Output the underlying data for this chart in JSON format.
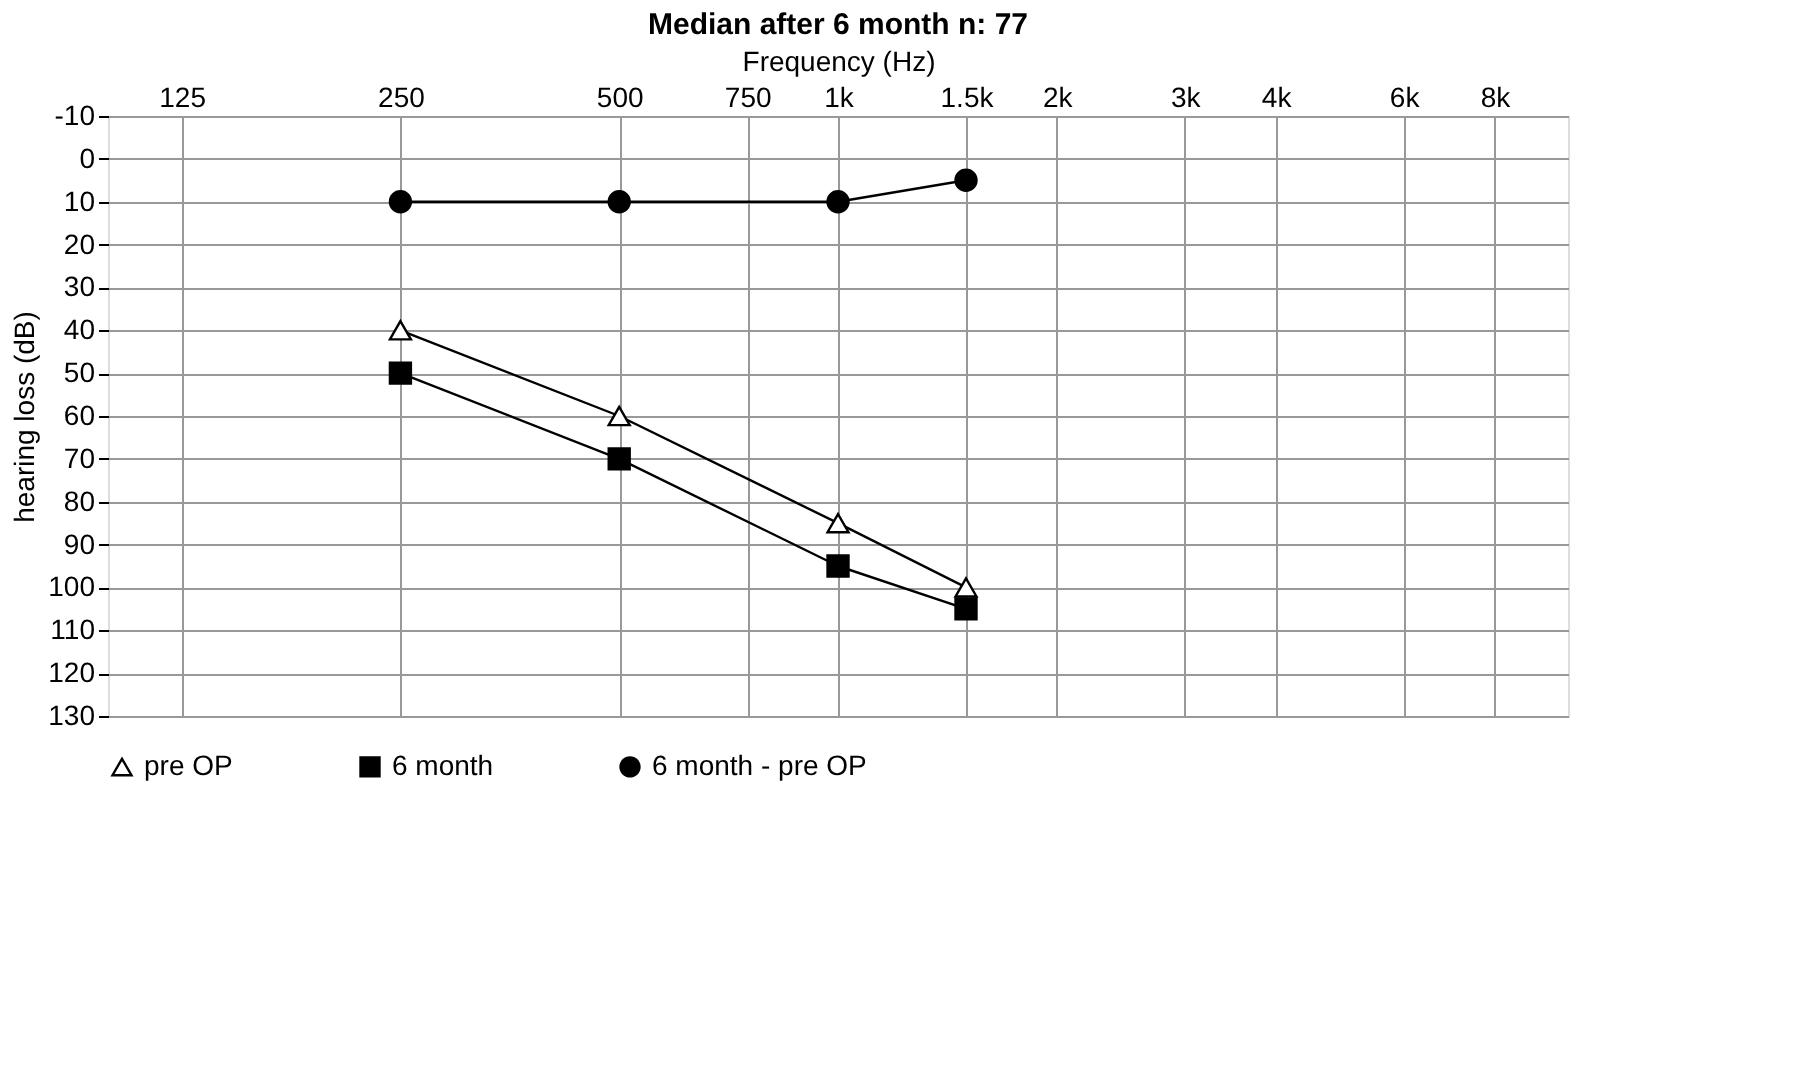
{
  "chart_data": {
    "type": "line",
    "title": "Median after 6 month n: 77",
    "xlabel": "Frequency (Hz)",
    "ylabel": "hearing loss (dB)",
    "log": "x",
    "xlim": [
      99,
      10100
    ],
    "xticks": [
      125,
      250,
      500,
      750,
      {
        "value": 1000,
        "label": "1k"
      },
      {
        "value": 1500,
        "label": "1.5k"
      },
      {
        "value": 2000,
        "label": "2k"
      },
      {
        "value": 3000,
        "label": "3k"
      },
      {
        "value": 4000,
        "label": "4k"
      },
      {
        "value": 6000,
        "label": "6k"
      },
      {
        "value": 8000,
        "label": "8k"
      }
    ],
    "ylim": [
      130,
      -10
    ],
    "yticks": [
      -10,
      0,
      10,
      20,
      30,
      40,
      50,
      60,
      70,
      80,
      90,
      100,
      110,
      120,
      130
    ],
    "grid": true,
    "legend": "bottom",
    "x": [
      250,
      500,
      1000,
      1500
    ],
    "series": [
      {
        "name": "pre OP",
        "color": "#000000",
        "marker": "triangle",
        "values": [
          40,
          60,
          85,
          100
        ]
      },
      {
        "name": "6 month",
        "color": "#000000",
        "marker": "square",
        "values": [
          50,
          70,
          95,
          105
        ]
      },
      {
        "name": "6 month - pre OP",
        "color": "#000000",
        "marker": "circle",
        "values": [
          10,
          10,
          10,
          5
        ]
      }
    ]
  }
}
